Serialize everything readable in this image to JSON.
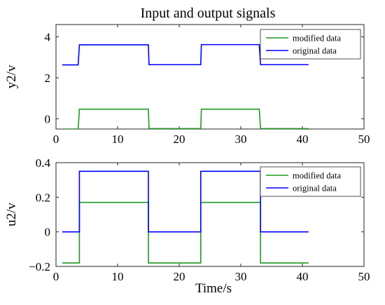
{
  "figure": {
    "title": "Input and output signals",
    "xlabel": "Time/s"
  },
  "chart_data": [
    {
      "type": "line",
      "ylabel": "y2/v",
      "xlim": [
        0,
        50
      ],
      "ylim": [
        -0.5,
        4.6
      ],
      "xticks": [
        0,
        10,
        20,
        30,
        40,
        50
      ],
      "yticks": [
        0,
        2,
        4
      ],
      "grid": false,
      "legend_position": "top-right",
      "series": [
        {
          "name": "modified data",
          "color": "#1f9a1f",
          "x": [
            1,
            3.6,
            3.8,
            15,
            15.1,
            23.5,
            23.6,
            33,
            33.2,
            41
          ],
          "y": [
            -0.5,
            -0.5,
            0.47,
            0.47,
            -0.48,
            -0.48,
            0.47,
            0.47,
            -0.48,
            -0.48
          ]
        },
        {
          "name": "original data",
          "color": "#0000ff",
          "x": [
            1,
            3.6,
            3.8,
            15,
            15.1,
            23.5,
            23.6,
            33,
            33.2,
            41
          ],
          "y": [
            2.63,
            2.63,
            3.61,
            3.61,
            2.64,
            2.64,
            3.62,
            3.62,
            2.64,
            2.64
          ]
        }
      ]
    },
    {
      "type": "line",
      "ylabel": "u2/v",
      "xlim": [
        0,
        50
      ],
      "ylim": [
        -0.2,
        0.4
      ],
      "xticks": [
        0,
        10,
        20,
        30,
        40,
        50
      ],
      "yticks": [
        -0.2,
        0,
        0.2,
        0.4
      ],
      "ytick_labels": [
        "−0.2",
        "0",
        "0.2",
        "0.4"
      ],
      "grid": false,
      "legend_position": "top-right",
      "series": [
        {
          "name": "modified data",
          "color": "#1f9a1f",
          "x": [
            1,
            3.8,
            3.8,
            15,
            15,
            23.5,
            23.5,
            33.2,
            33.2,
            41
          ],
          "y": [
            -0.18,
            -0.18,
            0.17,
            0.17,
            -0.18,
            -0.18,
            0.17,
            0.17,
            -0.18,
            -0.18
          ]
        },
        {
          "name": "original data",
          "color": "#0000ff",
          "x": [
            1,
            3.8,
            3.8,
            15,
            15,
            23.5,
            23.5,
            33.2,
            33.2,
            41
          ],
          "y": [
            0,
            0,
            0.35,
            0.35,
            0,
            0,
            0.35,
            0.35,
            0,
            0
          ]
        }
      ]
    }
  ]
}
